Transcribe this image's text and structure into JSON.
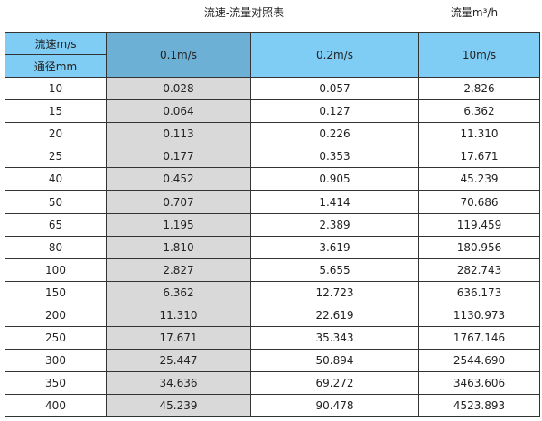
{
  "title": "流速-流量对照表",
  "unit_label": "流量m³/h",
  "colors": {
    "header": "#7fcdf4",
    "header_highlight": "#6db0d6",
    "highlight_column": "#d9d9d9"
  },
  "header": {
    "velocity_label": "流速m/s",
    "diameter_label": "通径mm",
    "columns": [
      "0.1m/s",
      "0.2m/s",
      "10m/s"
    ]
  },
  "rows": [
    [
      "10",
      "0.028",
      "0.057",
      "2.826"
    ],
    [
      "15",
      "0.064",
      "0.127",
      "6.362"
    ],
    [
      "20",
      "0.113",
      "0.226",
      "11.310"
    ],
    [
      "25",
      "0.177",
      "0.353",
      "17.671"
    ],
    [
      "40",
      "0.452",
      "0.905",
      "45.239"
    ],
    [
      "50",
      "0.707",
      "1.414",
      "70.686"
    ],
    [
      "65",
      "1.195",
      "2.389",
      "119.459"
    ],
    [
      "80",
      "1.810",
      "3.619",
      "180.956"
    ],
    [
      "100",
      "2.827",
      "5.655",
      "282.743"
    ],
    [
      "150",
      "6.362",
      "12.723",
      "636.173"
    ],
    [
      "200",
      "11.310",
      "22.619",
      "1130.973"
    ],
    [
      "250",
      "17.671",
      "35.343",
      "1767.146"
    ],
    [
      "300",
      "25.447",
      "50.894",
      "2544.690"
    ],
    [
      "350",
      "34.636",
      "69.272",
      "3463.606"
    ],
    [
      "400",
      "45.239",
      "90.478",
      "4523.893"
    ]
  ]
}
